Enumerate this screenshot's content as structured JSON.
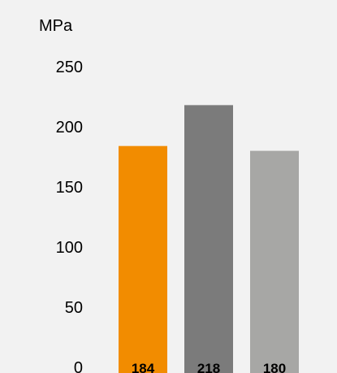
{
  "chart_data": {
    "type": "bar",
    "title": "",
    "xlabel": "",
    "ylabel": "MPa",
    "ylim": [
      0,
      250
    ],
    "yticks": [
      "0",
      "50",
      "100",
      "150",
      "200",
      "250"
    ],
    "grid": false,
    "legend": "none",
    "categories": [
      "",
      "",
      ""
    ],
    "values": [
      184,
      218,
      180
    ],
    "value_labels": [
      "184",
      "218",
      "180"
    ],
    "bar_colors": [
      "#f28c00",
      "#7b7b7b",
      "#a7a7a5"
    ],
    "background": "#f2f2f2"
  }
}
